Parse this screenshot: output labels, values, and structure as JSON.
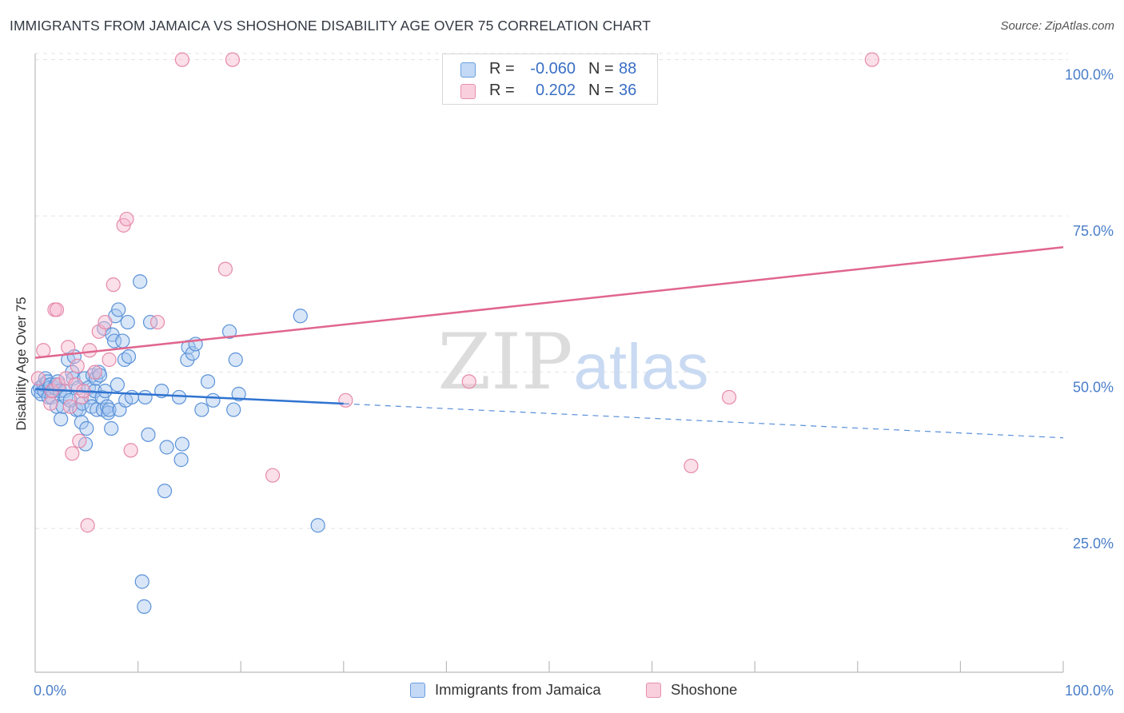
{
  "title": "IMMIGRANTS FROM JAMAICA VS SHOSHONE DISABILITY AGE OVER 75 CORRELATION CHART",
  "source": "Source: ZipAtlas.com",
  "watermark": {
    "zip": "ZIP",
    "atlas": "atlas"
  },
  "colors": {
    "blue_fill": "#a9c8f0",
    "blue_stroke": "#5b92d8",
    "blue_line": "#2f73d0",
    "pink_fill": "#f6b9cf",
    "pink_stroke": "#e58aab",
    "pink_line": "#e0668e",
    "axis_label": "#4a7ec9",
    "grid": "#e3e3e3"
  },
  "legend_top": [
    {
      "series": "Immigrants from Jamaica",
      "r_label": "R =",
      "r_value": "-0.060",
      "n_label": "N =",
      "n_value": "88"
    },
    {
      "series": "Shoshone",
      "r_label": "R =",
      "r_value": "0.202",
      "n_label": "N =",
      "n_value": "36"
    }
  ],
  "chart_data": {
    "type": "scatter",
    "title": "IMMIGRANTS FROM JAMAICA VS SHOSHONE DISABILITY AGE OVER 75 CORRELATION CHART",
    "xlabel": "",
    "ylabel": "Disability Age Over 75",
    "xlim": [
      0,
      100
    ],
    "ylim": [
      2,
      102
    ],
    "x_tick_labels": [
      "0.0%",
      "100.0%"
    ],
    "y_ticks": [
      25,
      50,
      75,
      100
    ],
    "y_tick_labels": [
      "25.0%",
      "50.0%",
      "75.0%",
      "100.0%"
    ],
    "grid": true,
    "legend_position": "top-center",
    "series": [
      {
        "name": "Immigrants from Jamaica",
        "r": -0.06,
        "n": 88,
        "trend": {
          "x_start": 0,
          "y_start": 47.3,
          "x_solid_end": 30,
          "x_end": 100,
          "y_end": 39.5
        },
        "points": [
          [
            0.3,
            47
          ],
          [
            0.5,
            47.5
          ],
          [
            0.6,
            46.5
          ],
          [
            0.8,
            48
          ],
          [
            0.9,
            47
          ],
          [
            1.0,
            49
          ],
          [
            1.2,
            48.5
          ],
          [
            1.3,
            46
          ],
          [
            1.4,
            47.5
          ],
          [
            1.5,
            48
          ],
          [
            1.6,
            46
          ],
          [
            1.7,
            47
          ],
          [
            1.9,
            47.5
          ],
          [
            2.0,
            48
          ],
          [
            2.1,
            44.5
          ],
          [
            2.2,
            48.5
          ],
          [
            2.4,
            47
          ],
          [
            2.5,
            42.5
          ],
          [
            2.7,
            44.5
          ],
          [
            2.9,
            47
          ],
          [
            3.0,
            46
          ],
          [
            3.2,
            52
          ],
          [
            3.4,
            45.5
          ],
          [
            3.6,
            50
          ],
          [
            3.7,
            49
          ],
          [
            3.8,
            52.5
          ],
          [
            4.0,
            44
          ],
          [
            4.2,
            47.5
          ],
          [
            4.3,
            44
          ],
          [
            4.5,
            42
          ],
          [
            4.6,
            45
          ],
          [
            4.8,
            49
          ],
          [
            4.9,
            38.5
          ],
          [
            5.0,
            41
          ],
          [
            5.2,
            47.5
          ],
          [
            5.4,
            46
          ],
          [
            5.5,
            44.5
          ],
          [
            5.6,
            49.5
          ],
          [
            5.8,
            47
          ],
          [
            5.9,
            49
          ],
          [
            6.0,
            44
          ],
          [
            6.2,
            50
          ],
          [
            6.3,
            49.5
          ],
          [
            6.5,
            46
          ],
          [
            6.6,
            44
          ],
          [
            6.7,
            57
          ],
          [
            6.8,
            47
          ],
          [
            7.0,
            44.5
          ],
          [
            7.1,
            43.5
          ],
          [
            7.2,
            44
          ],
          [
            7.4,
            41
          ],
          [
            7.5,
            56
          ],
          [
            7.7,
            55
          ],
          [
            7.8,
            59
          ],
          [
            8.0,
            48
          ],
          [
            8.1,
            60
          ],
          [
            8.2,
            44
          ],
          [
            8.5,
            55
          ],
          [
            8.7,
            52
          ],
          [
            8.8,
            45.5
          ],
          [
            9.0,
            58
          ],
          [
            9.1,
            52.5
          ],
          [
            9.4,
            46
          ],
          [
            10.2,
            64.5
          ],
          [
            10.7,
            46
          ],
          [
            11.0,
            40
          ],
          [
            11.2,
            58
          ],
          [
            12.3,
            47
          ],
          [
            12.6,
            31
          ],
          [
            12.8,
            38
          ],
          [
            14.0,
            46
          ],
          [
            14.2,
            36
          ],
          [
            14.3,
            38.5
          ],
          [
            14.8,
            52
          ],
          [
            14.9,
            54
          ],
          [
            15.3,
            53
          ],
          [
            15.6,
            54.5
          ],
          [
            16.2,
            44
          ],
          [
            16.8,
            48.5
          ],
          [
            17.3,
            45.5
          ],
          [
            18.9,
            56.5
          ],
          [
            19.3,
            44
          ],
          [
            19.5,
            52
          ],
          [
            19.8,
            46.5
          ],
          [
            25.8,
            59
          ],
          [
            27.5,
            25.5
          ],
          [
            10.4,
            16.5
          ],
          [
            10.6,
            12.5
          ]
        ]
      },
      {
        "name": "Shoshone",
        "r": 0.202,
        "n": 36,
        "trend": {
          "x_start": 0,
          "y_start": 52.3,
          "x_end": 100,
          "y_end": 70
        },
        "points": [
          [
            0.3,
            49
          ],
          [
            0.8,
            53.5
          ],
          [
            1.5,
            45
          ],
          [
            1.6,
            47
          ],
          [
            1.9,
            60
          ],
          [
            2.1,
            60
          ],
          [
            2.3,
            48
          ],
          [
            3.0,
            49
          ],
          [
            3.2,
            54
          ],
          [
            3.4,
            44.5
          ],
          [
            3.6,
            37
          ],
          [
            3.9,
            48
          ],
          [
            4.1,
            51
          ],
          [
            4.3,
            39
          ],
          [
            4.5,
            46
          ],
          [
            4.7,
            47
          ],
          [
            5.1,
            25.5
          ],
          [
            5.3,
            53.5
          ],
          [
            5.8,
            50
          ],
          [
            6.2,
            56.5
          ],
          [
            6.8,
            58
          ],
          [
            7.2,
            52
          ],
          [
            7.6,
            64
          ],
          [
            8.6,
            73.5
          ],
          [
            8.9,
            74.5
          ],
          [
            9.3,
            37.5
          ],
          [
            11.9,
            58
          ],
          [
            14.3,
            100
          ],
          [
            18.5,
            66.5
          ],
          [
            19.2,
            100
          ],
          [
            23.1,
            33.5
          ],
          [
            30.2,
            45.5
          ],
          [
            42.2,
            48.5
          ],
          [
            63.8,
            35
          ],
          [
            67.5,
            46
          ],
          [
            81.4,
            100
          ]
        ]
      }
    ]
  }
}
